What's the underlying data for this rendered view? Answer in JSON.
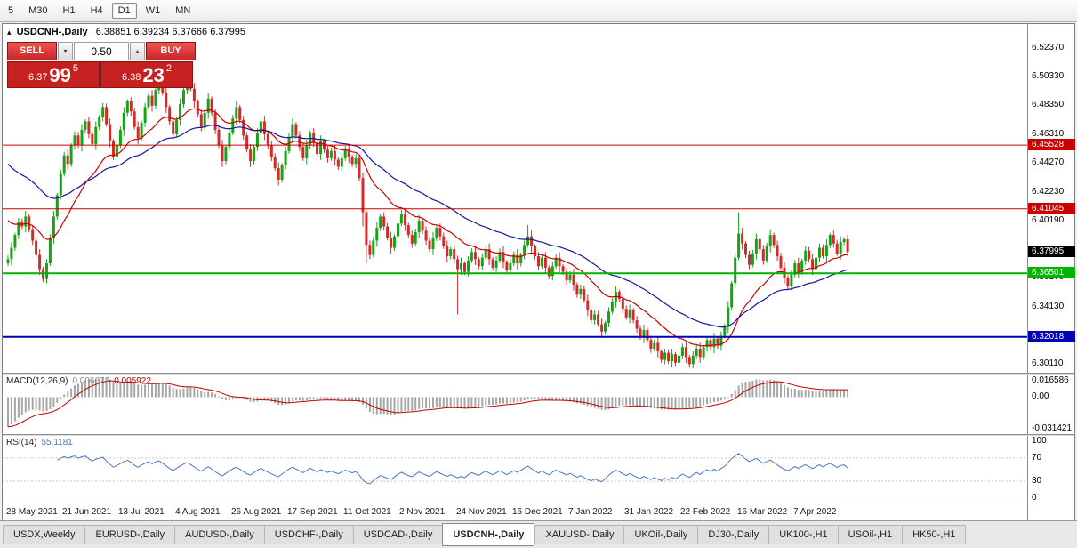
{
  "toolbar": {
    "timeframes": [
      "5",
      "M30",
      "H1",
      "H4",
      "D1",
      "W1",
      "MN"
    ],
    "active_index": 4
  },
  "chart": {
    "title": "USDCNH-,Daily",
    "ohlc_text": "6.38851 6.39234 6.37666 6.37995",
    "one_click": {
      "collapse_icon": "▴",
      "sell_label": "SELL",
      "buy_label": "BUY",
      "volume": "0.50",
      "spinner_down_icon": "▾",
      "spinner_up_icon": "▴",
      "sell_price": {
        "small": "6.37",
        "big": "99",
        "sup": "5"
      },
      "buy_price": {
        "small": "6.38",
        "big": "23",
        "sup": "2"
      }
    },
    "y_axis_labels": [
      "6.52370",
      "6.50330",
      "6.48350",
      "6.46310",
      "6.44270",
      "6.42230",
      "6.40190",
      "6.36170",
      "6.34130",
      "6.32090",
      "6.30110"
    ],
    "current_price": {
      "text": "6.37995",
      "price": 6.37995,
      "badge_color": "#000000"
    },
    "hlines": [
      {
        "label": "6.45528",
        "price": 6.45528,
        "color": "#cc0000",
        "width": 1
      },
      {
        "label": "6.41045",
        "price": 6.41045,
        "color": "#cc0000",
        "width": 1
      },
      {
        "label": "6.36501",
        "price": 6.36501,
        "color": "#00b400",
        "width": 2
      },
      {
        "label": "6.32018",
        "price": 6.32018,
        "color": "#0000b4",
        "width": 2
      }
    ]
  },
  "chart_data": {
    "type": "candlestick",
    "symbol": "USDCNH-",
    "timeframe": "Daily",
    "ylim": [
      6.295,
      6.5405
    ],
    "x_labels": [
      {
        "index": 0,
        "label": "28 May 2021"
      },
      {
        "index": 16,
        "label": "21 Jun 2021"
      },
      {
        "index": 32,
        "label": "13 Jul 2021"
      },
      {
        "index": 48,
        "label": "4 Aug 2021"
      },
      {
        "index": 64,
        "label": "26 Aug 2021"
      },
      {
        "index": 80,
        "label": "17 Sep 2021"
      },
      {
        "index": 96,
        "label": "11 Oct 2021"
      },
      {
        "index": 112,
        "label": "2 Nov 2021"
      },
      {
        "index": 128,
        "label": "24 Nov 2021"
      },
      {
        "index": 144,
        "label": "16 Dec 2021"
      },
      {
        "index": 160,
        "label": "7 Jan 2022"
      },
      {
        "index": 176,
        "label": "31 Jan 2022"
      },
      {
        "index": 192,
        "label": "22 Feb 2022"
      },
      {
        "index": 208,
        "label": "16 Mar 2022"
      },
      {
        "index": 224,
        "label": "7 Apr 2022"
      }
    ],
    "candles": {
      "first_open": 6.372,
      "up_color": "#17a317",
      "down_color": "#d42a2a",
      "wick_up": [
        0.0025,
        0.004,
        0.0015,
        0.003
      ],
      "wick_down": [
        0.003,
        0.0018,
        0.0042,
        0.0022
      ],
      "closes": [
        6.375,
        6.383,
        6.392,
        6.401,
        6.398,
        6.405,
        6.396,
        6.388,
        6.378,
        6.368,
        6.361,
        6.372,
        6.39,
        6.405,
        6.42,
        6.435,
        6.448,
        6.442,
        6.455,
        6.462,
        6.455,
        6.466,
        6.472,
        6.463,
        6.456,
        6.468,
        6.475,
        6.482,
        6.47,
        6.458,
        6.447,
        6.455,
        6.466,
        6.478,
        6.486,
        6.479,
        6.468,
        6.46,
        6.471,
        6.482,
        6.49,
        6.483,
        6.494,
        6.5,
        6.492,
        6.482,
        6.472,
        6.463,
        6.473,
        6.484,
        6.494,
        6.502,
        6.495,
        6.486,
        6.477,
        6.468,
        6.478,
        6.488,
        6.478,
        6.466,
        6.455,
        6.444,
        6.454,
        6.464,
        6.474,
        6.482,
        6.473,
        6.462,
        6.452,
        6.444,
        6.454,
        6.464,
        6.472,
        6.463,
        6.455,
        6.447,
        6.439,
        6.431,
        6.441,
        6.451,
        6.461,
        6.47,
        6.462,
        6.454,
        6.446,
        6.455,
        6.464,
        6.457,
        6.449,
        6.458,
        6.452,
        6.446,
        6.451,
        6.445,
        6.44,
        6.446,
        6.452,
        6.447,
        6.442,
        6.446,
        6.432,
        6.408,
        6.385,
        6.378,
        6.388,
        6.397,
        6.405,
        6.398,
        6.39,
        6.383,
        6.391,
        6.4,
        6.407,
        6.399,
        6.392,
        6.386,
        6.394,
        6.402,
        6.395,
        6.388,
        6.382,
        6.39,
        6.397,
        6.391,
        6.384,
        6.377,
        6.382,
        6.375,
        6.368,
        6.372,
        6.366,
        6.374,
        6.38,
        6.375,
        6.37,
        6.376,
        6.382,
        6.375,
        6.369,
        6.374,
        6.38,
        6.373,
        6.367,
        6.372,
        6.378,
        6.372,
        6.378,
        6.385,
        6.391,
        6.384,
        6.377,
        6.37,
        6.376,
        6.369,
        6.363,
        6.37,
        6.376,
        6.37,
        6.366,
        6.36,
        6.364,
        6.357,
        6.35,
        6.354,
        6.346,
        6.339,
        6.332,
        6.336,
        6.329,
        6.324,
        6.33,
        6.338,
        6.345,
        6.352,
        6.347,
        6.34,
        6.334,
        6.339,
        6.332,
        6.326,
        6.32,
        6.325,
        6.318,
        6.312,
        6.316,
        6.31,
        6.304,
        6.309,
        6.303,
        6.308,
        6.302,
        6.307,
        6.313,
        6.306,
        6.301,
        6.307,
        6.312,
        6.306,
        6.313,
        6.318,
        6.313,
        6.319,
        6.314,
        6.321,
        6.327,
        6.341,
        6.358,
        6.376,
        6.393,
        6.386,
        6.378,
        6.371,
        6.379,
        6.389,
        6.382,
        6.374,
        6.384,
        6.392,
        6.385,
        6.377,
        6.369,
        6.362,
        6.356,
        6.364,
        6.372,
        6.366,
        6.374,
        6.381,
        6.375,
        6.368,
        6.376,
        6.383,
        6.377,
        6.385,
        6.392,
        6.386,
        6.379,
        6.387,
        6.389,
        6.38
      ],
      "wick_overrides": {
        "101": {
          "low": 6.398
        },
        "102": {
          "low": 6.372
        },
        "128": {
          "low": 6.336
        },
        "148": {
          "high": 6.399
        },
        "208": {
          "high": 6.408
        }
      }
    },
    "overlays": [
      {
        "name": "ma-fast",
        "period": 20,
        "seed": 6.405,
        "color": "#cc0000"
      },
      {
        "name": "ma-slow",
        "period": 45,
        "seed": 6.445,
        "color": "#16169a"
      }
    ],
    "indicators": [
      {
        "name": "macd",
        "label": "MACD(12,26,9)",
        "main_value": "0.006672",
        "signal_value": "0.005922",
        "axis_labels": [
          "0.016586",
          "0.00",
          "-0.031421"
        ],
        "ylim": [
          -0.036,
          0.022
        ],
        "seed_offsets": [
          0.004,
          0.035
        ],
        "histogram_color": "#a6a6a6",
        "signal_color": "#c00000"
      },
      {
        "name": "rsi",
        "label": "RSI(14)",
        "value": "55.1181",
        "period": 14,
        "axis_labels": [
          "100",
          "70",
          "30",
          "0"
        ],
        "levels": [
          70,
          30
        ],
        "ylim": [
          -8,
          108
        ],
        "line_color": "#4b77be",
        "level_color": "#c9c9c9"
      }
    ]
  },
  "bottom_tabs": {
    "active_index": 5,
    "items": [
      {
        "label": "USDX,Weekly"
      },
      {
        "label": "EURUSD-,Daily"
      },
      {
        "label": "AUDUSD-,Daily"
      },
      {
        "label": "USDCHF-,Daily"
      },
      {
        "label": "USDCAD-,Daily"
      },
      {
        "label": "USDCNH-,Daily"
      },
      {
        "label": "XAUUSD-,Daily"
      },
      {
        "label": "UKOil-,Daily"
      },
      {
        "label": "DJ30-,Daily"
      },
      {
        "label": "UK100-,H1"
      },
      {
        "label": "USOil-,H1"
      },
      {
        "label": "HK50-,H1"
      }
    ]
  }
}
